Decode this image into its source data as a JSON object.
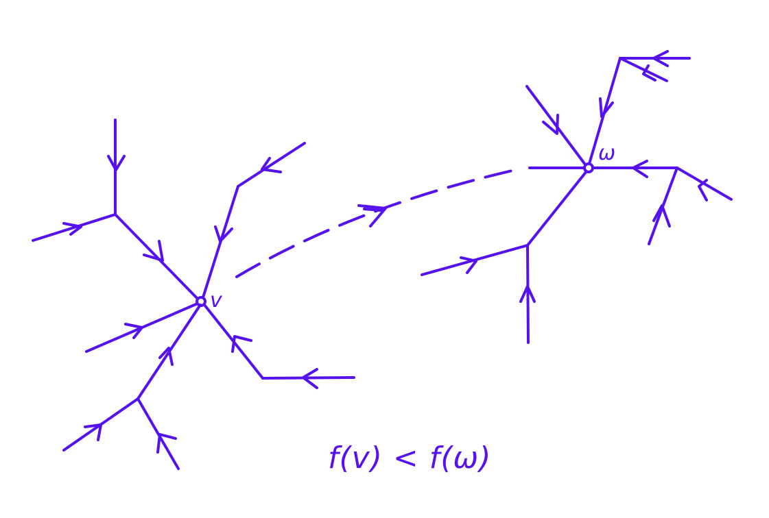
{
  "ink_color": "#5511ee",
  "labels": {
    "vertex_v": "v",
    "vertex_w": "ω"
  },
  "formula": "f(v) < f(ω)"
}
